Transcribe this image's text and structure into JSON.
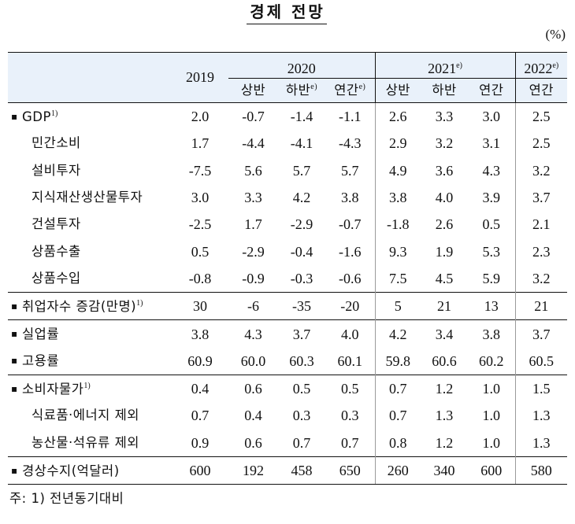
{
  "title": "경제 전망",
  "unit": "(%)",
  "header": {
    "col_2019": "2019",
    "col_2020": "2020",
    "col_2021": "2021",
    "col_2021_sup": "e)",
    "col_2022": "2022",
    "col_2022_sup": "e)",
    "h1": "상반",
    "h2": "하반",
    "h2_sup": "e)",
    "yr": "연간",
    "yr_sup": "e)"
  },
  "rows": [
    {
      "label": "GDP",
      "sup": "1)",
      "bullet": true,
      "values": [
        "2.0",
        "-0.7",
        "-1.4",
        "-1.1",
        "2.6",
        "3.3",
        "3.0",
        "2.5"
      ]
    },
    {
      "label": "민간소비",
      "sup": "",
      "bullet": false,
      "values": [
        "1.7",
        "-4.4",
        "-4.1",
        "-4.3",
        "2.9",
        "3.2",
        "3.1",
        "2.5"
      ]
    },
    {
      "label": "설비투자",
      "sup": "",
      "bullet": false,
      "values": [
        "-7.5",
        "5.6",
        "5.7",
        "5.7",
        "4.9",
        "3.6",
        "4.3",
        "3.2"
      ]
    },
    {
      "label": "지식재산생산물투자",
      "sup": "",
      "bullet": false,
      "values": [
        "3.0",
        "3.3",
        "4.2",
        "3.8",
        "3.8",
        "4.0",
        "3.9",
        "3.7"
      ]
    },
    {
      "label": "건설투자",
      "sup": "",
      "bullet": false,
      "values": [
        "-2.5",
        "1.7",
        "-2.9",
        "-0.7",
        "-1.8",
        "2.6",
        "0.5",
        "2.1"
      ]
    },
    {
      "label": "상품수출",
      "sup": "",
      "bullet": false,
      "values": [
        "0.5",
        "-2.9",
        "-0.4",
        "-1.6",
        "9.3",
        "1.9",
        "5.3",
        "2.3"
      ]
    },
    {
      "label": "상품수입",
      "sup": "",
      "bullet": false,
      "values": [
        "-0.8",
        "-0.9",
        "-0.3",
        "-0.6",
        "7.5",
        "4.5",
        "5.9",
        "3.2"
      ]
    },
    {
      "label": "취업자수 증감(만명)",
      "sup": "1)",
      "bullet": true,
      "values": [
        "30",
        "-6",
        "-35",
        "-20",
        "5",
        "21",
        "13",
        "21"
      ]
    },
    {
      "label": "실업률",
      "sup": "",
      "bullet": true,
      "values": [
        "3.8",
        "4.3",
        "3.7",
        "4.0",
        "4.2",
        "3.4",
        "3.8",
        "3.7"
      ]
    },
    {
      "label": "고용률",
      "sup": "",
      "bullet": true,
      "values": [
        "60.9",
        "60.0",
        "60.3",
        "60.1",
        "59.8",
        "60.6",
        "60.2",
        "60.5"
      ]
    },
    {
      "label": "소비자물가",
      "sup": "1)",
      "bullet": true,
      "values": [
        "0.4",
        "0.6",
        "0.5",
        "0.5",
        "0.7",
        "1.2",
        "1.0",
        "1.5"
      ]
    },
    {
      "label": "식료품·에너지 제외",
      "sup": "",
      "bullet": false,
      "values": [
        "0.7",
        "0.4",
        "0.3",
        "0.3",
        "0.7",
        "1.3",
        "1.0",
        "1.3"
      ]
    },
    {
      "label": "농산물·석유류 제외",
      "sup": "",
      "bullet": false,
      "values": [
        "0.9",
        "0.6",
        "0.7",
        "0.7",
        "0.8",
        "1.2",
        "1.0",
        "1.3"
      ]
    },
    {
      "label": "경상수지(억달러)",
      "sup": "",
      "bullet": true,
      "values": [
        "600",
        "192",
        "458",
        "650",
        "260",
        "340",
        "600",
        "580"
      ]
    }
  ],
  "footnote": "주: 1) 전년동기대비",
  "bullet_glyph": "▪"
}
